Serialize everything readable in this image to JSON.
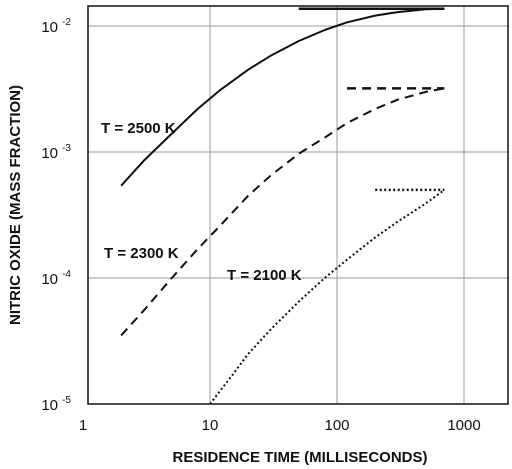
{
  "chart_data": {
    "type": "line",
    "xlabel": "RESIDENCE TIME (MILLISECONDS)",
    "ylabel": "NITRIC OXIDE (MASS FRACTION)",
    "xscale": "log",
    "yscale": "log",
    "xlim": [
      1,
      1000
    ],
    "ylim": [
      1e-05,
      0.02
    ],
    "grid": true,
    "x_ticks": [
      {
        "value": 1,
        "label": "1"
      },
      {
        "value": 10,
        "label": "10"
      },
      {
        "value": 100,
        "label": "100"
      },
      {
        "value": 1000,
        "label": "1000"
      }
    ],
    "y_ticks": [
      {
        "value": 0.01,
        "base": "10",
        "exp": "-2"
      },
      {
        "value": 0.001,
        "base": "10",
        "exp": "-3"
      },
      {
        "value": 0.0001,
        "base": "10",
        "exp": "-4"
      },
      {
        "value": 1e-05,
        "base": "10",
        "exp": "-5"
      }
    ],
    "series": [
      {
        "name": "T = 2500 K",
        "style": "solid",
        "x": [
          2,
          3,
          5,
          8,
          12,
          20,
          30,
          50,
          80,
          120,
          200,
          300,
          500,
          700
        ],
        "y": [
          0.00054,
          0.00085,
          0.0014,
          0.0022,
          0.0031,
          0.0045,
          0.0058,
          0.0076,
          0.0093,
          0.0107,
          0.0121,
          0.0129,
          0.0136,
          0.0137
        ],
        "equilibrium": {
          "x": [
            50,
            700
          ],
          "y": 0.0137
        }
      },
      {
        "name": "T = 2300 K",
        "style": "dashed",
        "x": [
          2,
          3,
          5,
          8,
          12,
          20,
          30,
          50,
          80,
          120,
          200,
          300,
          500,
          700
        ],
        "y": [
          3.5e-05,
          5.5e-05,
          0.0001,
          0.00017,
          0.00026,
          0.00045,
          0.00065,
          0.00097,
          0.0013,
          0.0017,
          0.0022,
          0.0026,
          0.003,
          0.0032
        ],
        "equilibrium": {
          "x": [
            120,
            700
          ],
          "y": 0.0032
        }
      },
      {
        "name": "T = 2100 K",
        "style": "dotted",
        "x": [
          10,
          15,
          20,
          30,
          50,
          80,
          120,
          200,
          300,
          500,
          700
        ],
        "y": [
          1e-05,
          1.7e-05,
          2.5e-05,
          3.9e-05,
          6.5e-05,
          0.0001,
          0.00014,
          0.00021,
          0.00028,
          0.00039,
          0.0005
        ],
        "equilibrium": {
          "x": [
            200,
            700
          ],
          "y": 0.0005
        }
      }
    ]
  }
}
